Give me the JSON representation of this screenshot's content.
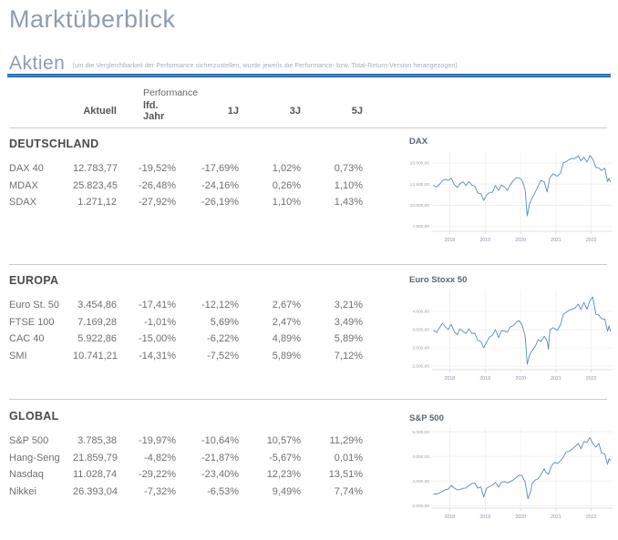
{
  "page": {
    "title": "Marktüberblick"
  },
  "aktien": {
    "heading": "Aktien",
    "note": "(um die Vergleichbarkeit der Performance sicherzustellen, wurde jeweils die Performance- bzw. Total-Return-Version herangezogen)"
  },
  "colors": {
    "accent_blue": "#2e75b6",
    "chart_line_blue": "#5b87c8",
    "heading_gray_blue": "#8e9dae",
    "divider_gray": "#cccccc"
  },
  "table": {
    "group_header": "Performance",
    "columns": [
      "Aktuell",
      "lfd. Jahr",
      "1J",
      "3J",
      "5J"
    ],
    "sections": [
      {
        "name": "DEUTSCHLAND",
        "rows": [
          {
            "label": "DAX 40",
            "values": [
              "12.783,77",
              "-19,52%",
              "-17,69%",
              "1,02%",
              "0,73%"
            ]
          },
          {
            "label": "MDAX",
            "values": [
              "25.823,45",
              "-26,48%",
              "-24,16%",
              "0,26%",
              "1,10%"
            ]
          },
          {
            "label": "SDAX",
            "values": [
              "1.271,12",
              "-27,92%",
              "-26,19%",
              "1,10%",
              "1,43%"
            ]
          }
        ]
      },
      {
        "name": "EUROPA",
        "rows": [
          {
            "label": "Euro St. 50",
            "values": [
              "3.454,86",
              "-17,41%",
              "-12,12%",
              "2,67%",
              "3,21%"
            ]
          },
          {
            "label": "FTSE 100",
            "values": [
              "7.169,28",
              "-1,01%",
              "5,69%",
              "2,47%",
              "3,49%"
            ]
          },
          {
            "label": "CAC 40",
            "values": [
              "5.922,86",
              "-15,00%",
              "-6,22%",
              "4,89%",
              "5,89%"
            ]
          },
          {
            "label": "SMI",
            "values": [
              "10.741,21",
              "-14,31%",
              "-7,52%",
              "5,89%",
              "7,12%"
            ]
          }
        ]
      },
      {
        "name": "GLOBAL",
        "rows": [
          {
            "label": "S&P 500",
            "values": [
              "3.785,38",
              "-19,97%",
              "-10,64%",
              "10,57%",
              "11,29%"
            ]
          },
          {
            "label": "Hang-Seng",
            "values": [
              "21.859,79",
              "-4,82%",
              "-21,87%",
              "-5,67%",
              "0,01%"
            ]
          },
          {
            "label": "Nasdaq",
            "values": [
              "11.028,74",
              "-29,22%",
              "-23,40%",
              "12,23%",
              "13,51%"
            ]
          },
          {
            "label": "Nikkei",
            "values": [
              "26.393,04",
              "-7,32%",
              "-6,53%",
              "9,49%",
              "7,74%"
            ]
          }
        ]
      }
    ]
  },
  "chart_data": [
    {
      "type": "line",
      "title": "DAX",
      "x_ticks": [
        2018,
        2019,
        2020,
        2021,
        2022
      ],
      "x_range": [
        2017.5,
        2022.6
      ],
      "y_range": [
        6900,
        16400
      ],
      "y_tick_values": [
        15000,
        12500,
        10000,
        7500
      ],
      "y_tick_labels": [
        "15.000,00",
        "12.500,00",
        "10.000,00",
        "7.500,00"
      ],
      "points": [
        [
          2017.54,
          12325
        ],
        [
          2017.63,
          12160
        ],
        [
          2017.71,
          12460
        ],
        [
          2017.79,
          12910
        ],
        [
          2017.88,
          13060
        ],
        [
          2017.96,
          12920
        ],
        [
          2018.04,
          13190
        ],
        [
          2018.13,
          12440
        ],
        [
          2018.21,
          12100
        ],
        [
          2018.29,
          12550
        ],
        [
          2018.38,
          12760
        ],
        [
          2018.46,
          12310
        ],
        [
          2018.54,
          12810
        ],
        [
          2018.63,
          12360
        ],
        [
          2018.71,
          12240
        ],
        [
          2018.79,
          11450
        ],
        [
          2018.88,
          11350
        ],
        [
          2018.96,
          10560
        ],
        [
          2019.04,
          11200
        ],
        [
          2019.13,
          11510
        ],
        [
          2019.21,
          11530
        ],
        [
          2019.29,
          12340
        ],
        [
          2019.38,
          11730
        ],
        [
          2019.46,
          12400
        ],
        [
          2019.54,
          12190
        ],
        [
          2019.63,
          11750
        ],
        [
          2019.71,
          12430
        ],
        [
          2019.79,
          12870
        ],
        [
          2019.88,
          13240
        ],
        [
          2019.96,
          13250
        ],
        [
          2020.04,
          12980
        ],
        [
          2020.13,
          11890
        ],
        [
          2020.19,
          8740
        ],
        [
          2020.25,
          10100
        ],
        [
          2020.33,
          10860
        ],
        [
          2020.42,
          11590
        ],
        [
          2020.5,
          12310
        ],
        [
          2020.58,
          12950
        ],
        [
          2020.67,
          12760
        ],
        [
          2020.75,
          11560
        ],
        [
          2020.83,
          13290
        ],
        [
          2020.92,
          13720
        ],
        [
          2021.04,
          13430
        ],
        [
          2021.13,
          13790
        ],
        [
          2021.21,
          15010
        ],
        [
          2021.29,
          15140
        ],
        [
          2021.38,
          15420
        ],
        [
          2021.46,
          15530
        ],
        [
          2021.54,
          15540
        ],
        [
          2021.63,
          15840
        ],
        [
          2021.71,
          15260
        ],
        [
          2021.79,
          15690
        ],
        [
          2021.88,
          15100
        ],
        [
          2021.96,
          15885
        ],
        [
          2022.04,
          15470
        ],
        [
          2022.13,
          14460
        ],
        [
          2022.21,
          14420
        ],
        [
          2022.29,
          14100
        ],
        [
          2022.38,
          14390
        ],
        [
          2022.46,
          12780
        ],
        [
          2022.5,
          13160
        ],
        [
          2022.54,
          12790
        ]
      ]
    },
    {
      "type": "line",
      "title": "Euro Stoxx 50",
      "x_ticks": [
        2018,
        2019,
        2020,
        2021,
        2022
      ],
      "x_range": [
        2017.5,
        2022.6
      ],
      "y_range": [
        2400,
        4600
      ],
      "y_tick_values": [
        4000,
        3500,
        3000,
        2500
      ],
      "y_tick_labels": [
        "4.000,00",
        "3.500,00",
        "3.000,00",
        "2.500,00"
      ],
      "points": [
        [
          2017.54,
          3480
        ],
        [
          2017.63,
          3420
        ],
        [
          2017.71,
          3555
        ],
        [
          2017.79,
          3675
        ],
        [
          2017.88,
          3570
        ],
        [
          2017.96,
          3505
        ],
        [
          2018.04,
          3645
        ],
        [
          2018.13,
          3440
        ],
        [
          2018.21,
          3360
        ],
        [
          2018.29,
          3520
        ],
        [
          2018.38,
          3450
        ],
        [
          2018.46,
          3395
        ],
        [
          2018.54,
          3525
        ],
        [
          2018.63,
          3395
        ],
        [
          2018.71,
          3400
        ],
        [
          2018.79,
          3200
        ],
        [
          2018.88,
          3175
        ],
        [
          2018.96,
          3000
        ],
        [
          2019.04,
          3160
        ],
        [
          2019.13,
          3300
        ],
        [
          2019.21,
          3350
        ],
        [
          2019.29,
          3500
        ],
        [
          2019.38,
          3280
        ],
        [
          2019.46,
          3475
        ],
        [
          2019.54,
          3465
        ],
        [
          2019.63,
          3430
        ],
        [
          2019.71,
          3570
        ],
        [
          2019.79,
          3605
        ],
        [
          2019.88,
          3700
        ],
        [
          2019.96,
          3745
        ],
        [
          2020.04,
          3640
        ],
        [
          2020.13,
          3330
        ],
        [
          2020.19,
          2550
        ],
        [
          2020.25,
          2790
        ],
        [
          2020.33,
          2930
        ],
        [
          2020.42,
          3050
        ],
        [
          2020.5,
          3230
        ],
        [
          2020.58,
          3175
        ],
        [
          2020.67,
          3315
        ],
        [
          2020.75,
          3195
        ],
        [
          2020.79,
          2960
        ],
        [
          2020.83,
          3490
        ],
        [
          2020.92,
          3555
        ],
        [
          2021.04,
          3480
        ],
        [
          2021.13,
          3635
        ],
        [
          2021.21,
          3920
        ],
        [
          2021.29,
          3975
        ],
        [
          2021.38,
          4040
        ],
        [
          2021.46,
          4065
        ],
        [
          2021.54,
          4090
        ],
        [
          2021.63,
          4200
        ],
        [
          2021.71,
          4050
        ],
        [
          2021.79,
          4250
        ],
        [
          2021.88,
          4060
        ],
        [
          2021.96,
          4298
        ],
        [
          2022.04,
          4395
        ],
        [
          2022.13,
          3920
        ],
        [
          2022.21,
          3900
        ],
        [
          2022.29,
          3800
        ],
        [
          2022.38,
          3790
        ],
        [
          2022.46,
          3455
        ],
        [
          2022.5,
          3600
        ],
        [
          2022.54,
          3455
        ]
      ]
    },
    {
      "type": "line",
      "title": "S&P 500",
      "x_ticks": [
        2018,
        2019,
        2020,
        2021,
        2022
      ],
      "x_range": [
        2017.5,
        2022.6
      ],
      "y_range": [
        1900,
        5150
      ],
      "y_tick_values": [
        5000,
        4000,
        3000,
        2000
      ],
      "y_tick_labels": [
        "5.000,00",
        "4.000,00",
        "3.000,00",
        "2.000,00"
      ],
      "points": [
        [
          2017.54,
          2470
        ],
        [
          2017.63,
          2472
        ],
        [
          2017.71,
          2519
        ],
        [
          2017.79,
          2575
        ],
        [
          2017.88,
          2648
        ],
        [
          2017.96,
          2674
        ],
        [
          2018.04,
          2824
        ],
        [
          2018.13,
          2714
        ],
        [
          2018.21,
          2641
        ],
        [
          2018.29,
          2648
        ],
        [
          2018.38,
          2705
        ],
        [
          2018.46,
          2718
        ],
        [
          2018.54,
          2816
        ],
        [
          2018.63,
          2902
        ],
        [
          2018.71,
          2914
        ],
        [
          2018.79,
          2712
        ],
        [
          2018.88,
          2760
        ],
        [
          2018.96,
          2351
        ],
        [
          2019.04,
          2704
        ],
        [
          2019.13,
          2784
        ],
        [
          2019.21,
          2834
        ],
        [
          2019.29,
          2946
        ],
        [
          2019.38,
          2752
        ],
        [
          2019.46,
          2942
        ],
        [
          2019.54,
          2980
        ],
        [
          2019.63,
          2926
        ],
        [
          2019.71,
          2977
        ],
        [
          2019.79,
          3038
        ],
        [
          2019.88,
          3141
        ],
        [
          2019.96,
          3231
        ],
        [
          2020.04,
          3226
        ],
        [
          2020.13,
          2954
        ],
        [
          2020.21,
          2280
        ],
        [
          2020.29,
          2585
        ],
        [
          2020.33,
          2912
        ],
        [
          2020.42,
          3044
        ],
        [
          2020.5,
          3100
        ],
        [
          2020.58,
          3271
        ],
        [
          2020.67,
          3500
        ],
        [
          2020.71,
          3363
        ],
        [
          2020.79,
          3270
        ],
        [
          2020.88,
          3622
        ],
        [
          2020.96,
          3756
        ],
        [
          2021.04,
          3714
        ],
        [
          2021.13,
          3811
        ],
        [
          2021.21,
          3973
        ],
        [
          2021.29,
          4181
        ],
        [
          2021.38,
          4204
        ],
        [
          2021.46,
          4298
        ],
        [
          2021.54,
          4395
        ],
        [
          2021.63,
          4523
        ],
        [
          2021.71,
          4308
        ],
        [
          2021.79,
          4605
        ],
        [
          2021.88,
          4567
        ],
        [
          2021.96,
          4766
        ],
        [
          2022.04,
          4516
        ],
        [
          2022.13,
          4374
        ],
        [
          2022.21,
          4530
        ],
        [
          2022.29,
          4132
        ],
        [
          2022.38,
          4100
        ],
        [
          2022.46,
          3675
        ],
        [
          2022.5,
          3900
        ],
        [
          2022.54,
          3830
        ]
      ]
    }
  ]
}
